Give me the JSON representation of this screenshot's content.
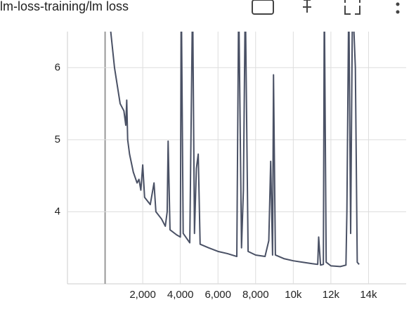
{
  "chart_data": {
    "type": "line",
    "title": "lm-loss-training/lm loss",
    "x": [
      300,
      500,
      800,
      1000,
      1100,
      1150,
      1200,
      1300,
      1500,
      1700,
      1800,
      1900,
      2000,
      2100,
      2400,
      2600,
      2700,
      3000,
      3200,
      3300,
      3350,
      3450,
      3800,
      4000,
      4050,
      4150,
      4500,
      4650,
      4750,
      4850,
      4950,
      5050,
      5500,
      6000,
      6500,
      7000,
      7100,
      7250,
      7350,
      7450,
      7600,
      8000,
      8500,
      8700,
      8800,
      8900,
      8950,
      9050,
      9500,
      10000,
      10500,
      11000,
      11300,
      11350,
      11450,
      11600,
      11650,
      11750,
      12000,
      12500,
      12800,
      12850,
      12950,
      13050,
      13150,
      13300,
      13400,
      13500
    ],
    "series": [
      {
        "name": "lm loss",
        "color": "#4a5165",
        "values": [
          6.5,
          6.0,
          5.5,
          5.4,
          5.2,
          5.55,
          5.0,
          4.8,
          4.55,
          4.4,
          4.45,
          4.3,
          4.65,
          4.2,
          4.1,
          4.4,
          4.0,
          3.9,
          3.8,
          4.0,
          4.98,
          3.75,
          3.68,
          3.65,
          7,
          3.7,
          3.57,
          7,
          3.7,
          4.6,
          4.8,
          3.55,
          3.5,
          3.45,
          3.42,
          3.38,
          7,
          3.5,
          4.3,
          7,
          3.45,
          3.4,
          3.38,
          3.6,
          4.7,
          3.4,
          5.9,
          3.4,
          3.35,
          3.32,
          3.3,
          3.28,
          3.27,
          3.65,
          3.26,
          3.27,
          7,
          3.3,
          3.25,
          3.24,
          3.26,
          4.0,
          7,
          3.7,
          7,
          6.0,
          3.3,
          3.27
        ]
      }
    ],
    "xlim": [
      -2000,
      16000
    ],
    "ylim": [
      3,
      6.5
    ],
    "xticks": [
      {
        "value": 2000,
        "label": "2,000"
      },
      {
        "value": 4000,
        "label": "4,000"
      },
      {
        "value": 6000,
        "label": "6,000"
      },
      {
        "value": 8000,
        "label": "8,000"
      },
      {
        "value": 10000,
        "label": "10k"
      },
      {
        "value": 12000,
        "label": "12k"
      },
      {
        "value": 14000,
        "label": "14k"
      }
    ],
    "yticks": [
      4,
      5,
      6
    ],
    "grid": true
  }
}
